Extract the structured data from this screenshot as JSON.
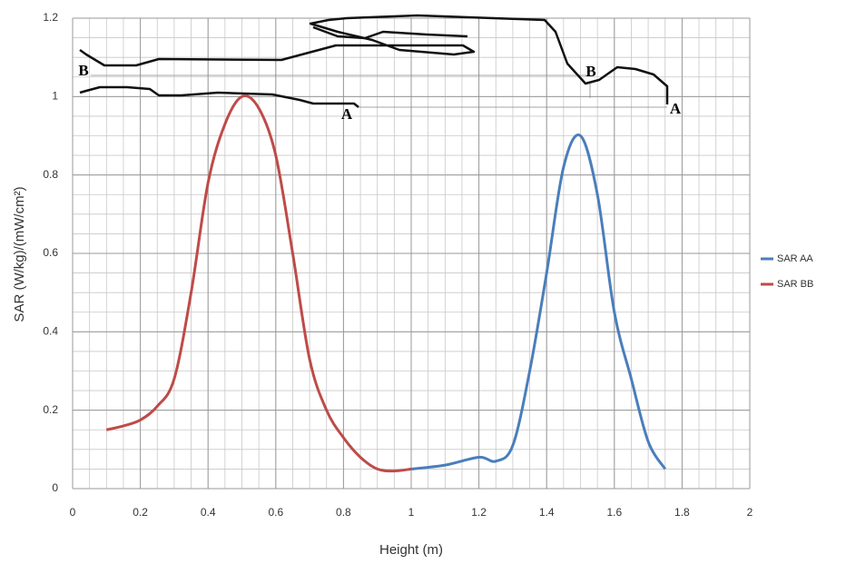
{
  "chart_data": {
    "type": "line",
    "x_label": "Height (m)",
    "y_label": "SAR (W/kg)/(mW/cm²)",
    "xlim": [
      0,
      2
    ],
    "xticks": [
      0,
      0.2,
      0.4,
      0.6,
      0.8,
      1,
      1.2,
      1.4,
      1.6,
      1.8,
      2
    ],
    "ylim": [
      0,
      1.2
    ],
    "yticks": [
      0,
      0.2,
      0.4,
      0.6,
      0.8,
      1,
      1.2
    ],
    "grid": true,
    "minor_grid": 0.05,
    "legend": "right",
    "annotations": [
      "B",
      "A",
      "B",
      "A"
    ],
    "series": [
      {
        "name": "SAR AA",
        "color": "#4a7ebb",
        "x": [
          1.0,
          1.1,
          1.2,
          1.25,
          1.3,
          1.35,
          1.4,
          1.45,
          1.5,
          1.55,
          1.6,
          1.65,
          1.7,
          1.75
        ],
        "values": [
          0.05,
          0.06,
          0.08,
          0.07,
          0.11,
          0.3,
          0.55,
          0.82,
          0.9,
          0.75,
          0.45,
          0.28,
          0.12,
          0.05
        ]
      },
      {
        "name": "SAR BB",
        "color": "#be4b48",
        "x": [
          0.1,
          0.15,
          0.2,
          0.25,
          0.3,
          0.35,
          0.4,
          0.45,
          0.5,
          0.55,
          0.6,
          0.65,
          0.7,
          0.75,
          0.8,
          0.85,
          0.9,
          0.95,
          1.0
        ],
        "values": [
          0.15,
          0.16,
          0.175,
          0.21,
          0.28,
          0.5,
          0.78,
          0.93,
          1.0,
          0.97,
          0.85,
          0.6,
          0.33,
          0.2,
          0.13,
          0.08,
          0.05,
          0.045,
          0.05
        ]
      }
    ]
  }
}
